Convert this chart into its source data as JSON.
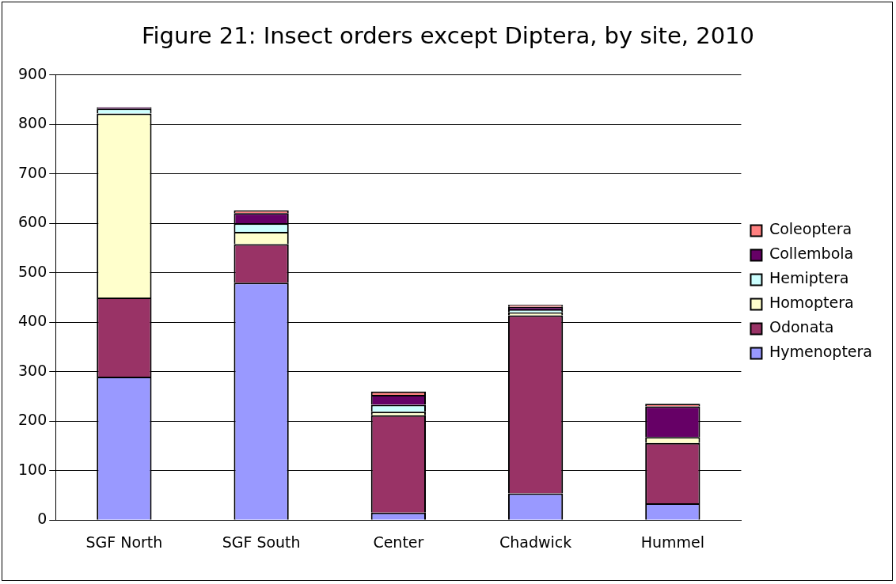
{
  "chart_data": {
    "type": "bar",
    "stacked": true,
    "title": "Figure 21: Insect orders except Diptera, by site, 2010",
    "categories": [
      "SGF North",
      "SGF South",
      "Center",
      "Chadwick",
      "Hummel"
    ],
    "series": [
      {
        "name": "Hymenoptera",
        "color": "#9999ff",
        "values": [
          290,
          480,
          15,
          54,
          34
        ]
      },
      {
        "name": "Odonata",
        "color": "#993366",
        "values": [
          160,
          78,
          197,
          360,
          122
        ]
      },
      {
        "name": "Homoptera",
        "color": "#ffffcc",
        "values": [
          372,
          25,
          7,
          6,
          12
        ]
      },
      {
        "name": "Hemiptera",
        "color": "#ccffff",
        "values": [
          10,
          17,
          14,
          6,
          0
        ]
      },
      {
        "name": "Collembola",
        "color": "#660066",
        "values": [
          3,
          21,
          20,
          5,
          62
        ]
      },
      {
        "name": "Coleoptera",
        "color": "#ff8080",
        "values": [
          null,
          5,
          7,
          4,
          5
        ]
      }
    ],
    "ylim": [
      0,
      900
    ],
    "yticks": [
      0,
      100,
      200,
      300,
      400,
      500,
      600,
      700,
      800,
      900
    ],
    "grid": "y",
    "legend": "right"
  }
}
